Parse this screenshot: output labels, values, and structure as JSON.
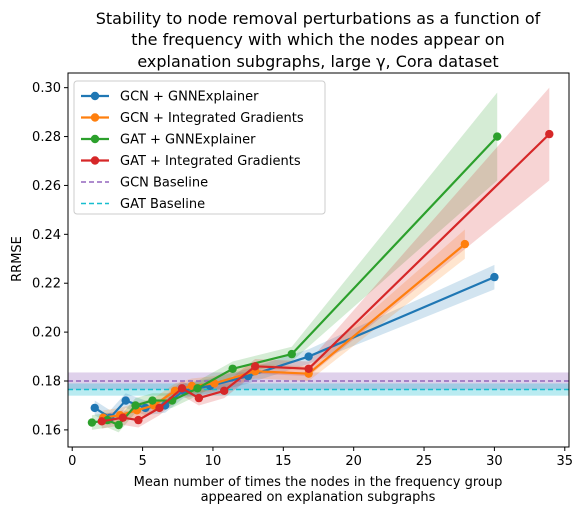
{
  "chart_data": {
    "type": "line",
    "title_lines": [
      "Stability to node removal perturbations as a function of",
      "the frequency with which the nodes appear on",
      "explanation subgraphs, large γ, Cora dataset"
    ],
    "xlabel_lines": [
      "Mean number of times the nodes in the frequency group",
      "appeared on explanation subgraphs"
    ],
    "ylabel": "RRMSE",
    "xlim": [
      -0.3,
      35.3
    ],
    "ylim": [
      0.153,
      0.306
    ],
    "xticks": [
      0,
      5,
      10,
      15,
      20,
      25,
      30,
      35
    ],
    "yticks": [
      0.16,
      0.18,
      0.2,
      0.22,
      0.24,
      0.26,
      0.28,
      0.3
    ],
    "ytick_labels": [
      "0.16",
      "0.18",
      "0.20",
      "0.22",
      "0.24",
      "0.26",
      "0.28",
      "0.30"
    ],
    "grid": false,
    "legend_position": "top-left",
    "series": [
      {
        "name": "GCN + GNNExplainer",
        "color": "#1f77b4",
        "x": [
          1.6,
          2.7,
          3.8,
          5.2,
          6.6,
          7.9,
          9.8,
          12.5,
          16.8,
          30.0
        ],
        "y": [
          0.169,
          0.165,
          0.172,
          0.169,
          0.17,
          0.176,
          0.178,
          0.182,
          0.19,
          0.2225
        ],
        "band": [
          0.003,
          0.003,
          0.003,
          0.003,
          0.003,
          0.003,
          0.003,
          0.003,
          0.003,
          0.005
        ]
      },
      {
        "name": "GCN + Integrated Gradients",
        "color": "#ff7f0e",
        "x": [
          2.2,
          3.4,
          4.6,
          5.8,
          7.3,
          8.5,
          10.1,
          13.0,
          16.8,
          27.9
        ],
        "y": [
          0.165,
          0.166,
          0.168,
          0.17,
          0.176,
          0.178,
          0.179,
          0.184,
          0.183,
          0.236
        ],
        "band": [
          0.003,
          0.003,
          0.003,
          0.003,
          0.003,
          0.003,
          0.003,
          0.003,
          0.003,
          0.006
        ]
      },
      {
        "name": "GAT + GNNExplainer",
        "color": "#2ca02c",
        "x": [
          1.4,
          2.5,
          3.3,
          4.5,
          5.7,
          7.1,
          8.9,
          11.4,
          15.6,
          30.2
        ],
        "y": [
          0.163,
          0.164,
          0.162,
          0.17,
          0.172,
          0.172,
          0.177,
          0.185,
          0.191,
          0.28
        ],
        "band": [
          0.003,
          0.003,
          0.003,
          0.003,
          0.003,
          0.003,
          0.003,
          0.003,
          0.003,
          0.018
        ]
      },
      {
        "name": "GAT + Integrated Gradients",
        "color": "#d62728",
        "x": [
          2.1,
          3.6,
          4.7,
          6.2,
          7.8,
          9.0,
          10.8,
          13.0,
          16.8,
          33.9
        ],
        "y": [
          0.1635,
          0.165,
          0.164,
          0.169,
          0.177,
          0.173,
          0.176,
          0.186,
          0.185,
          0.281
        ],
        "band": [
          0.003,
          0.003,
          0.003,
          0.003,
          0.003,
          0.003,
          0.003,
          0.003,
          0.003,
          0.019
        ]
      }
    ],
    "baselines": [
      {
        "name": "GCN Baseline",
        "color": "#9467bd",
        "y": 0.18,
        "band": 0.0035
      },
      {
        "name": "GAT Baseline",
        "color": "#17becf",
        "y": 0.1765,
        "band": 0.0025
      }
    ]
  }
}
